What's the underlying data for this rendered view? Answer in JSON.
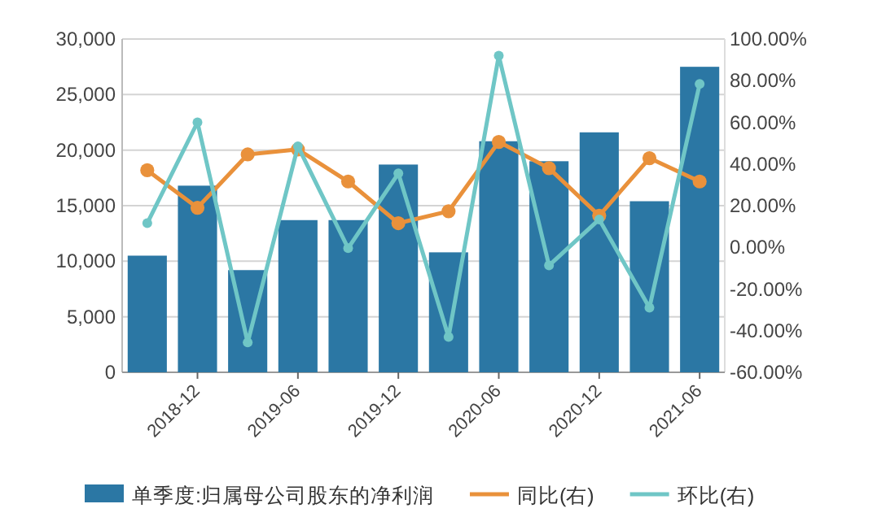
{
  "chart_data": {
    "type": "bar",
    "categories": [
      null,
      "2018-12",
      null,
      "2019-06",
      null,
      "2019-12",
      null,
      "2020-06",
      null,
      "2020-12",
      null,
      "2021-06"
    ],
    "series": [
      {
        "name": "单季度:归属母公司股东的净利润",
        "color": "#2b77a4",
        "values": [
          10500,
          16800,
          9200,
          13700,
          13700,
          18700,
          10800,
          20800,
          19000,
          21600,
          15400,
          27500
        ]
      },
      {
        "name": "同比(右)",
        "type": "line",
        "axis": "y2",
        "color": "#e9913b",
        "values": [
          37,
          19,
          44.6,
          47,
          31.6,
          11.6,
          17.3,
          50.6,
          38,
          15.2,
          42.8,
          31.6
        ]
      },
      {
        "name": "环比(右)",
        "type": "line",
        "axis": "y2",
        "color": "#6fc6c6",
        "values": [
          11.6,
          60,
          -45.7,
          48.5,
          -0.4,
          35.5,
          -43,
          92,
          -8.7,
          13.4,
          -29,
          78.4
        ]
      }
    ],
    "ylim": [
      0,
      30000
    ],
    "yticks": [
      0,
      {
        "value": 5000,
        "label": "5,000"
      },
      {
        "value": 10000,
        "label": "10,000"
      },
      {
        "value": 15000,
        "label": "15,000"
      },
      {
        "value": 20000,
        "label": "20,000"
      },
      {
        "value": 25000,
        "label": "25,000"
      },
      {
        "value": 30000,
        "label": "30,000"
      }
    ],
    "y2lim": [
      -60,
      100
    ],
    "y2ticks": [
      {
        "value": -60,
        "label": "-60.00%"
      },
      {
        "value": -40,
        "label": "-40.00%"
      },
      {
        "value": -20,
        "label": "-20.00%"
      },
      {
        "value": 0,
        "label": "0.00%"
      },
      {
        "value": 20,
        "label": "20.00%"
      },
      {
        "value": 40,
        "label": "40.00%"
      },
      {
        "value": 60,
        "label": "60.00%"
      },
      {
        "value": 80,
        "label": "80.00%"
      },
      {
        "value": 100,
        "label": "100.00%"
      }
    ],
    "grid": "y",
    "legend": "bottom",
    "marker": "circle",
    "line_style": "solid"
  }
}
